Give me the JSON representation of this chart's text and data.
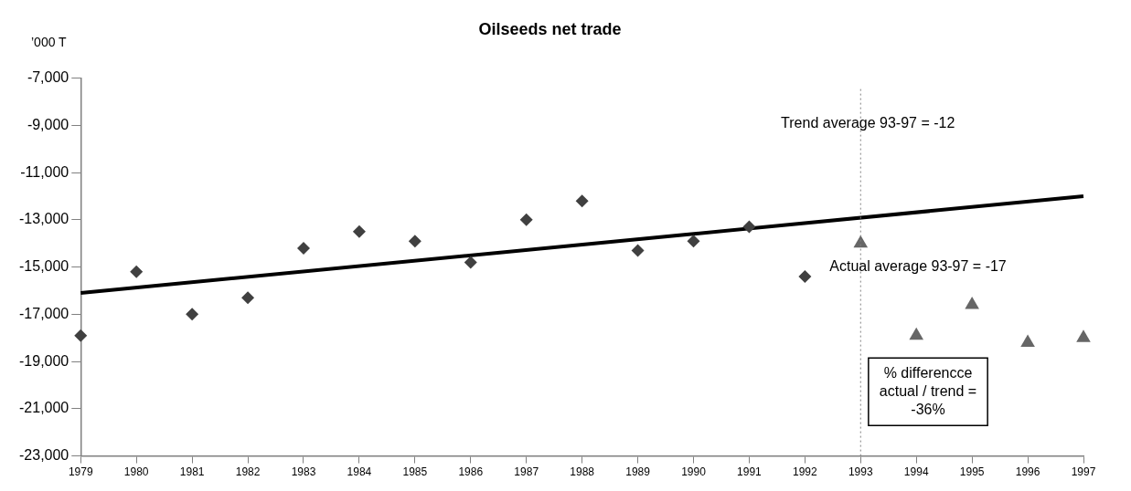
{
  "chart_data": {
    "type": "scatter",
    "title": "Oilseeds net trade",
    "ylabel": "’000 T",
    "xlim": [
      1979,
      1997
    ],
    "xticks": [
      1979,
      1980,
      1981,
      1982,
      1983,
      1984,
      1985,
      1986,
      1987,
      1988,
      1989,
      1990,
      1991,
      1992,
      1993,
      1994,
      1995,
      1996,
      1997
    ],
    "ylim": [
      -23000,
      -7000
    ],
    "yticks": [
      {
        "value": -23000,
        "label": "-23,000"
      },
      {
        "value": -21000,
        "label": "-21,000"
      },
      {
        "value": -19000,
        "label": "-19,000"
      },
      {
        "value": -17000,
        "label": "-17,000"
      },
      {
        "value": -15000,
        "label": "-15,000"
      },
      {
        "value": -13000,
        "label": "-13,000"
      },
      {
        "value": -11000,
        "label": "-11,000"
      },
      {
        "value": -9000,
        "label": "-9,000"
      },
      {
        "value": -7000,
        "label": "-7,000"
      }
    ],
    "series": [
      {
        "marker": "diamond",
        "color": "#404040",
        "x": [
          1979,
          1980,
          1981,
          1982,
          1983,
          1984,
          1985,
          1986,
          1987,
          1988,
          1989,
          1990,
          1991,
          1992
        ],
        "values": [
          -17900,
          -15200,
          -17000,
          -16300,
          -14200,
          -13500,
          -13900,
          -14800,
          -13000,
          -12200,
          -14300,
          -13900,
          -13300,
          -15400
        ]
      },
      {
        "marker": "triangle",
        "color": "#666666",
        "x": [
          1993,
          1994,
          1995,
          1996,
          1997
        ],
        "values": [
          -14000,
          -17900,
          -16600,
          -18200,
          -18000
        ]
      },
      {
        "type": "line",
        "marker": "none",
        "color": "#000000",
        "x": [
          1979,
          1997
        ],
        "values": [
          -16100,
          -12000
        ]
      }
    ],
    "ref_lines": [
      {
        "axis": "x",
        "value": 1993,
        "color": "#808080",
        "line_style": "dotted"
      }
    ],
    "annotations": [
      "Trend average 93-97 = -12",
      "Actual average 93-97 = -17",
      "% differencce actual / trend = -36%"
    ],
    "grid": false,
    "legend": false
  }
}
